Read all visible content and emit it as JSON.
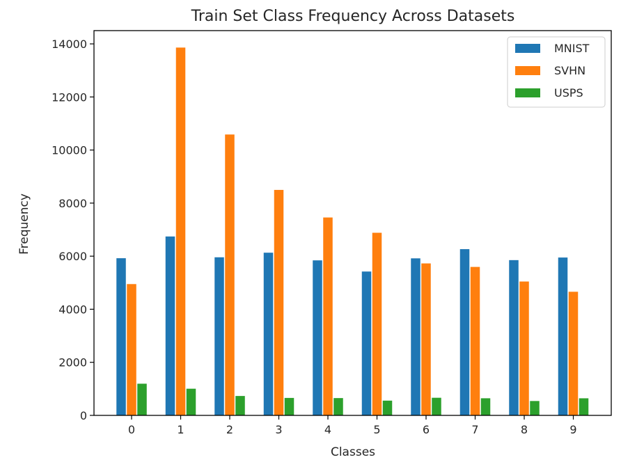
{
  "chart_data": {
    "type": "bar",
    "title": "Train Set Class Frequency Across Datasets",
    "xlabel": "Classes",
    "ylabel": "Frequency",
    "categories": [
      "0",
      "1",
      "2",
      "3",
      "4",
      "5",
      "6",
      "7",
      "8",
      "9"
    ],
    "ylim": [
      0,
      14500
    ],
    "yticks": [
      0,
      2000,
      4000,
      6000,
      8000,
      10000,
      12000,
      14000
    ],
    "grid": false,
    "legend_position": "top-right",
    "series": [
      {
        "name": "MNIST",
        "color": "#1f77b4",
        "values": [
          5923,
          6742,
          5958,
          6131,
          5842,
          5421,
          5918,
          6265,
          5851,
          5949
        ]
      },
      {
        "name": "SVHN",
        "color": "#ff7f0e",
        "values": [
          4948,
          13861,
          10585,
          8497,
          7458,
          6882,
          5727,
          5595,
          5045,
          4659
        ]
      },
      {
        "name": "USPS",
        "color": "#2ca02c",
        "values": [
          1194,
          1005,
          731,
          658,
          652,
          556,
          664,
          645,
          542,
          644
        ]
      }
    ]
  }
}
